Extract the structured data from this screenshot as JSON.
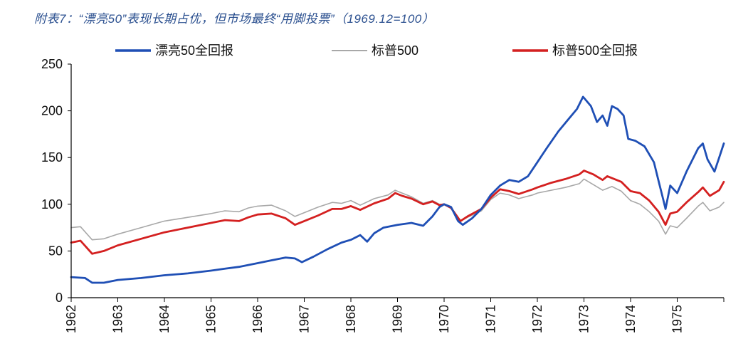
{
  "title": "附表7：“漂亮50”表现长期占优，但市场最终“用脚投票”（1969.12=100）",
  "chart_data": {
    "type": "line",
    "title": "附表7：“漂亮50”表现长期占优，但市场最终“用脚投票”（1969.12=100）",
    "xlabel": "",
    "ylabel": "",
    "xlim": [
      1962.0,
      1976.0
    ],
    "ylim": [
      0,
      250
    ],
    "yticks": [
      0,
      50,
      100,
      150,
      200,
      250
    ],
    "xticks": [
      "1962",
      "1963",
      "1964",
      "1965",
      "1966",
      "1967",
      "1968",
      "1969",
      "1970",
      "1971",
      "1972",
      "1973",
      "1974",
      "1975"
    ],
    "grid": false,
    "legend_position": "top",
    "series": [
      {
        "name": "漂亮50全回报",
        "color": "#1f4fb5",
        "points": [
          [
            1962.0,
            22
          ],
          [
            1962.3,
            21
          ],
          [
            1962.45,
            16
          ],
          [
            1962.7,
            16
          ],
          [
            1963.0,
            19
          ],
          [
            1963.5,
            21
          ],
          [
            1964.0,
            24
          ],
          [
            1964.5,
            26
          ],
          [
            1965.0,
            29
          ],
          [
            1965.3,
            31
          ],
          [
            1965.6,
            33
          ],
          [
            1966.0,
            37
          ],
          [
            1966.3,
            40
          ],
          [
            1966.6,
            43
          ],
          [
            1966.8,
            42
          ],
          [
            1966.95,
            38
          ],
          [
            1967.2,
            44
          ],
          [
            1967.5,
            52
          ],
          [
            1967.8,
            59
          ],
          [
            1968.0,
            62
          ],
          [
            1968.2,
            67
          ],
          [
            1968.35,
            60
          ],
          [
            1968.5,
            69
          ],
          [
            1968.7,
            75
          ],
          [
            1969.0,
            78
          ],
          [
            1969.3,
            80
          ],
          [
            1969.55,
            77
          ],
          [
            1969.75,
            87
          ],
          [
            1969.9,
            97
          ],
          [
            1970.0,
            100
          ],
          [
            1970.15,
            97
          ],
          [
            1970.3,
            82
          ],
          [
            1970.4,
            78
          ],
          [
            1970.6,
            85
          ],
          [
            1970.8,
            95
          ],
          [
            1971.0,
            110
          ],
          [
            1971.2,
            120
          ],
          [
            1971.4,
            126
          ],
          [
            1971.6,
            124
          ],
          [
            1971.8,
            130
          ],
          [
            1972.0,
            145
          ],
          [
            1972.2,
            160
          ],
          [
            1972.45,
            178
          ],
          [
            1972.65,
            190
          ],
          [
            1972.85,
            202
          ],
          [
            1972.98,
            215
          ],
          [
            1973.15,
            205
          ],
          [
            1973.28,
            188
          ],
          [
            1973.4,
            195
          ],
          [
            1973.5,
            184
          ],
          [
            1973.6,
            205
          ],
          [
            1973.72,
            202
          ],
          [
            1973.85,
            195
          ],
          [
            1973.95,
            170
          ],
          [
            1974.1,
            168
          ],
          [
            1974.3,
            162
          ],
          [
            1974.5,
            145
          ],
          [
            1974.6,
            125
          ],
          [
            1974.7,
            105
          ],
          [
            1974.75,
            95
          ],
          [
            1974.85,
            120
          ],
          [
            1975.0,
            112
          ],
          [
            1975.2,
            135
          ],
          [
            1975.45,
            160
          ],
          [
            1975.55,
            165
          ],
          [
            1975.65,
            148
          ],
          [
            1975.8,
            135
          ],
          [
            1975.9,
            150
          ],
          [
            1976.0,
            165
          ]
        ]
      },
      {
        "name": "标普500",
        "color": "#a8a8a8",
        "points": [
          [
            1962.0,
            75
          ],
          [
            1962.2,
            76
          ],
          [
            1962.45,
            62
          ],
          [
            1962.7,
            63
          ],
          [
            1963.0,
            68
          ],
          [
            1963.5,
            75
          ],
          [
            1964.0,
            82
          ],
          [
            1964.5,
            86
          ],
          [
            1965.0,
            90
          ],
          [
            1965.3,
            93
          ],
          [
            1965.6,
            92
          ],
          [
            1965.8,
            96
          ],
          [
            1966.0,
            98
          ],
          [
            1966.3,
            99
          ],
          [
            1966.6,
            93
          ],
          [
            1966.8,
            87
          ],
          [
            1967.0,
            91
          ],
          [
            1967.3,
            97
          ],
          [
            1967.6,
            102
          ],
          [
            1967.8,
            101
          ],
          [
            1968.0,
            104
          ],
          [
            1968.2,
            99
          ],
          [
            1968.5,
            106
          ],
          [
            1968.8,
            110
          ],
          [
            1968.95,
            115
          ],
          [
            1969.1,
            112
          ],
          [
            1969.3,
            108
          ],
          [
            1969.55,
            101
          ],
          [
            1969.75,
            104
          ],
          [
            1969.9,
            100
          ],
          [
            1970.0,
            100
          ],
          [
            1970.15,
            96
          ],
          [
            1970.35,
            82
          ],
          [
            1970.5,
            86
          ],
          [
            1970.8,
            93
          ],
          [
            1971.0,
            105
          ],
          [
            1971.2,
            112
          ],
          [
            1971.4,
            110
          ],
          [
            1971.6,
            106
          ],
          [
            1971.9,
            110
          ],
          [
            1972.0,
            112
          ],
          [
            1972.3,
            115
          ],
          [
            1972.6,
            118
          ],
          [
            1972.9,
            122
          ],
          [
            1973.0,
            127
          ],
          [
            1973.2,
            121
          ],
          [
            1973.4,
            115
          ],
          [
            1973.6,
            119
          ],
          [
            1973.8,
            114
          ],
          [
            1974.0,
            104
          ],
          [
            1974.2,
            100
          ],
          [
            1974.4,
            92
          ],
          [
            1974.6,
            82
          ],
          [
            1974.75,
            68
          ],
          [
            1974.85,
            77
          ],
          [
            1975.0,
            75
          ],
          [
            1975.2,
            85
          ],
          [
            1975.45,
            98
          ],
          [
            1975.55,
            102
          ],
          [
            1975.7,
            93
          ],
          [
            1975.9,
            97
          ],
          [
            1976.0,
            102
          ]
        ]
      },
      {
        "name": "标普500全回报",
        "color": "#d42020",
        "points": [
          [
            1962.0,
            59
          ],
          [
            1962.2,
            61
          ],
          [
            1962.45,
            47
          ],
          [
            1962.7,
            50
          ],
          [
            1963.0,
            56
          ],
          [
            1963.5,
            63
          ],
          [
            1964.0,
            70
          ],
          [
            1964.5,
            75
          ],
          [
            1965.0,
            80
          ],
          [
            1965.3,
            83
          ],
          [
            1965.6,
            82
          ],
          [
            1965.8,
            86
          ],
          [
            1966.0,
            89
          ],
          [
            1966.3,
            90
          ],
          [
            1966.6,
            85
          ],
          [
            1966.8,
            78
          ],
          [
            1967.0,
            82
          ],
          [
            1967.3,
            88
          ],
          [
            1967.6,
            95
          ],
          [
            1967.8,
            95
          ],
          [
            1968.0,
            98
          ],
          [
            1968.2,
            94
          ],
          [
            1968.5,
            101
          ],
          [
            1968.8,
            106
          ],
          [
            1968.95,
            112
          ],
          [
            1969.1,
            109
          ],
          [
            1969.3,
            106
          ],
          [
            1969.55,
            100
          ],
          [
            1969.75,
            103
          ],
          [
            1969.9,
            99
          ],
          [
            1970.0,
            100
          ],
          [
            1970.15,
            96
          ],
          [
            1970.35,
            82
          ],
          [
            1970.5,
            87
          ],
          [
            1970.8,
            95
          ],
          [
            1971.0,
            107
          ],
          [
            1971.2,
            116
          ],
          [
            1971.4,
            114
          ],
          [
            1971.6,
            111
          ],
          [
            1971.9,
            116
          ],
          [
            1972.0,
            118
          ],
          [
            1972.3,
            123
          ],
          [
            1972.6,
            127
          ],
          [
            1972.9,
            132
          ],
          [
            1973.0,
            136
          ],
          [
            1973.2,
            132
          ],
          [
            1973.4,
            126
          ],
          [
            1973.5,
            130
          ],
          [
            1973.6,
            128
          ],
          [
            1973.8,
            124
          ],
          [
            1974.0,
            114
          ],
          [
            1974.2,
            112
          ],
          [
            1974.4,
            104
          ],
          [
            1974.6,
            92
          ],
          [
            1974.75,
            78
          ],
          [
            1974.85,
            90
          ],
          [
            1975.0,
            92
          ],
          [
            1975.2,
            102
          ],
          [
            1975.45,
            113
          ],
          [
            1975.55,
            118
          ],
          [
            1975.7,
            109
          ],
          [
            1975.9,
            115
          ],
          [
            1976.0,
            124
          ]
        ]
      }
    ]
  }
}
